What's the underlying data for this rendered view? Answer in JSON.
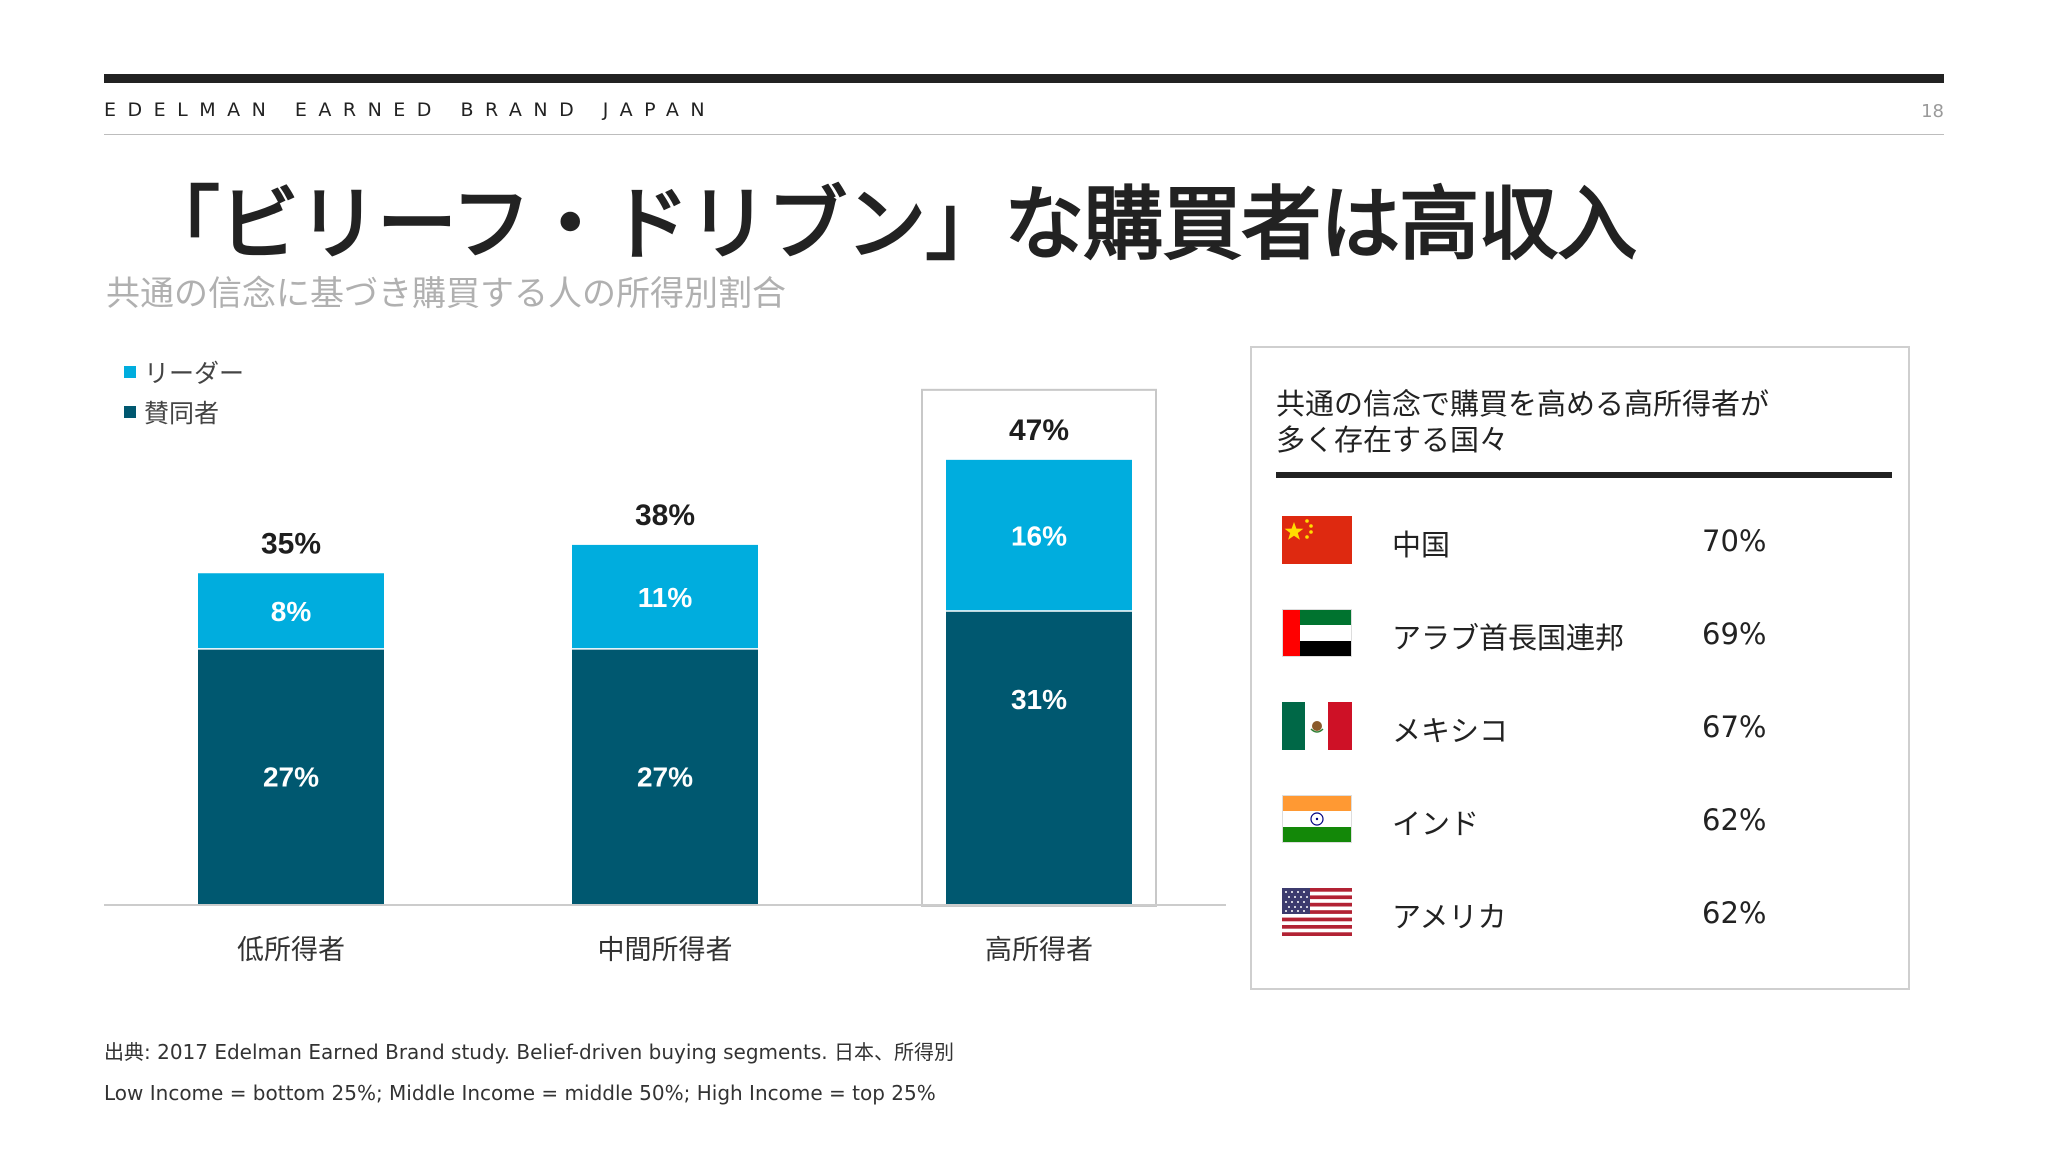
{
  "header": {
    "brand": "EDELMAN EARNED BRAND JAPAN",
    "page_number": "18"
  },
  "title": "「ビリーフ・ドリブン」な購買者は高収入",
  "subtitle": "共通の信念に基づき購買する人の所得別割合",
  "chart_data": {
    "type": "bar",
    "stacked": true,
    "categories": [
      "低所得者",
      "中間所得者",
      "高所得者"
    ],
    "series": [
      {
        "name": "賛同者",
        "values": [
          27,
          27,
          31
        ],
        "labels": [
          "27%",
          "27%",
          "31%"
        ],
        "color": "#005870"
      },
      {
        "name": "リーダー",
        "values": [
          8,
          11,
          16
        ],
        "labels": [
          "8%",
          "11%",
          "16%"
        ],
        "color": "#00ADDE"
      }
    ],
    "totals": [
      35,
      38,
      47
    ],
    "total_labels": [
      "35%",
      "38%",
      "47%"
    ],
    "legend": [
      "リーダー",
      "賛同者"
    ],
    "legend_position": "top-left",
    "highlight_category": "高所得者",
    "ylim": [
      0,
      55
    ],
    "grid": false
  },
  "panel": {
    "title_line1": "共通の信念で購買を高める高所得者が",
    "title_line2": "多く存在する国々",
    "countries": [
      {
        "name": "中国",
        "value": "70%",
        "flag": "china-flag"
      },
      {
        "name": "アラブ首長国連邦",
        "value": "69%",
        "flag": "uae-flag"
      },
      {
        "name": "メキシコ",
        "value": "67%",
        "flag": "mexico-flag"
      },
      {
        "name": "インド",
        "value": "62%",
        "flag": "india-flag"
      },
      {
        "name": "アメリカ",
        "value": "62%",
        "flag": "usa-flag"
      }
    ]
  },
  "source": {
    "line1": "出典: 2017 Edelman Earned Brand study. Belief-driven buying segments. 日本、所得別",
    "line2": "Low Income = bottom 25%; Middle Income = middle 50%; High Income = top 25%"
  },
  "colors": {
    "leader": "#00ADDE",
    "supporter": "#005870",
    "text_dark": "#222222",
    "subtitle_gray": "#B0B0B0"
  }
}
